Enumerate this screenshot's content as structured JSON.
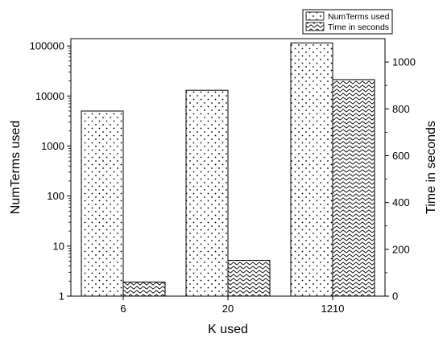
{
  "chart_data": {
    "type": "bar",
    "categories": [
      "6",
      "20",
      "1210"
    ],
    "xlabel": "K used",
    "series": [
      {
        "name": "NumTerms used",
        "axis": "left",
        "scale": "log",
        "pattern": "dots",
        "values": [
          5000,
          13000,
          115000
        ]
      },
      {
        "name": "Time in seconds",
        "axis": "right",
        "scale": "linear",
        "pattern": "waves",
        "values": [
          60,
          153,
          925
        ]
      }
    ],
    "y_left": {
      "label": "NumTerms used",
      "scale": "log",
      "range": [
        1,
        140000
      ],
      "ticks": [
        1,
        10,
        100,
        1000,
        10000,
        100000
      ],
      "tick_labels": [
        "1",
        "10",
        "100",
        "1000",
        "10000",
        "100000"
      ]
    },
    "y_right": {
      "label": "Time in seconds",
      "scale": "linear",
      "range": [
        0,
        1100
      ],
      "ticks": [
        0,
        200,
        400,
        600,
        800,
        1000
      ],
      "tick_labels": [
        "0",
        "200",
        "400",
        "600",
        "800",
        "1000"
      ]
    },
    "grid": false,
    "legend_position": "top-right"
  }
}
